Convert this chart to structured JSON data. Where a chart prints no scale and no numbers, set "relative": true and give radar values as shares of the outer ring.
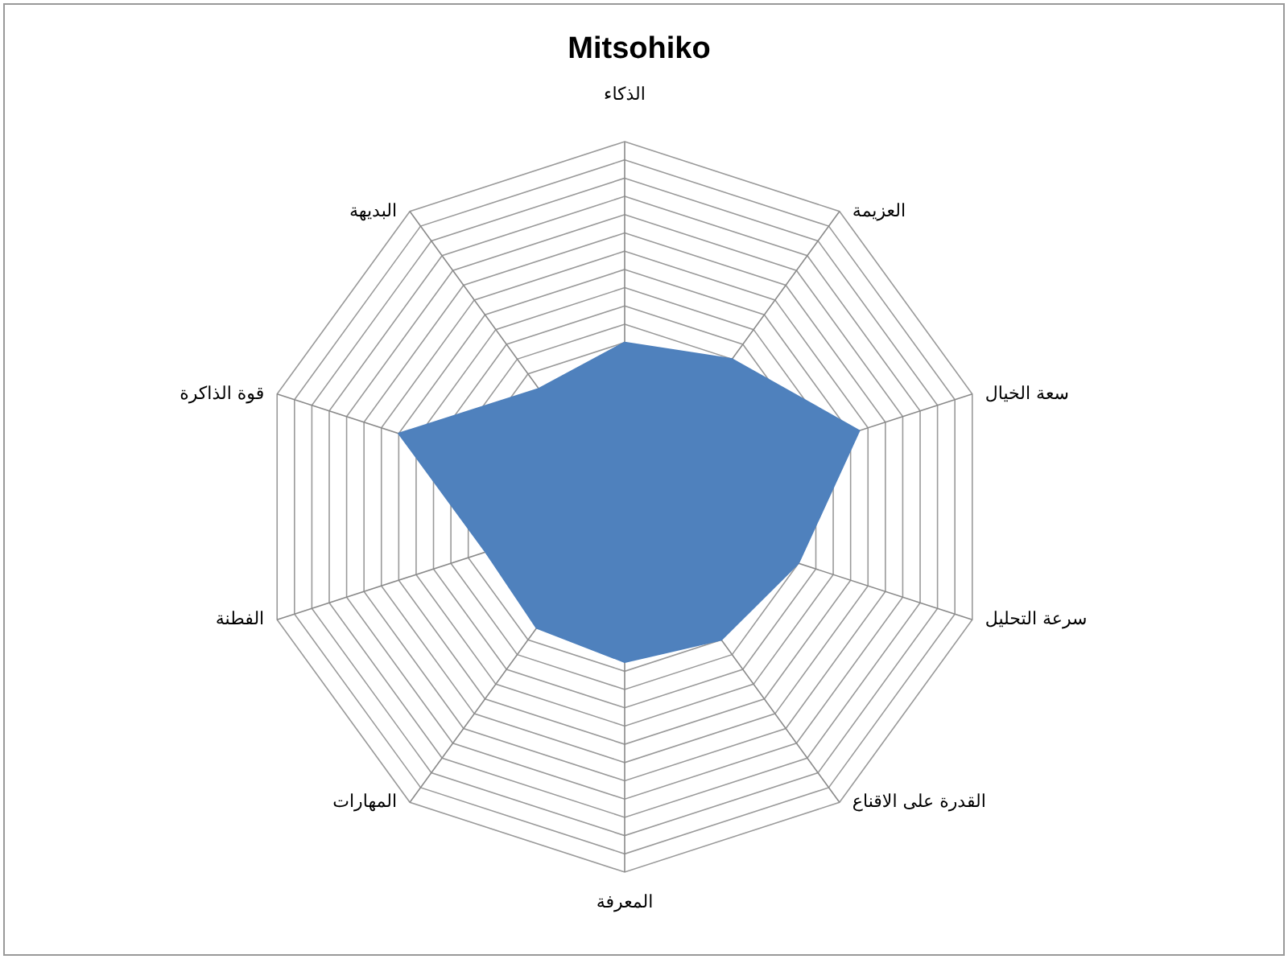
{
  "chart_data": {
    "type": "radar",
    "title": "Mitsohiko",
    "categories": [
      "الذكاء",
      "العزيمة",
      "سعة الخيال",
      "سرعة التحليل",
      "القدرة على الاقناع",
      "المعرفة",
      "المهارات",
      "الفطنة",
      "قوة الذاكرة",
      "البديهة"
    ],
    "series": [
      {
        "color": "#4f81bd",
        "values": [
          0.45,
          0.5,
          0.675,
          0.5,
          0.45,
          0.425,
          0.41,
          0.4,
          0.65,
          0.4
        ]
      }
    ],
    "relative": true,
    "grid": true
  }
}
